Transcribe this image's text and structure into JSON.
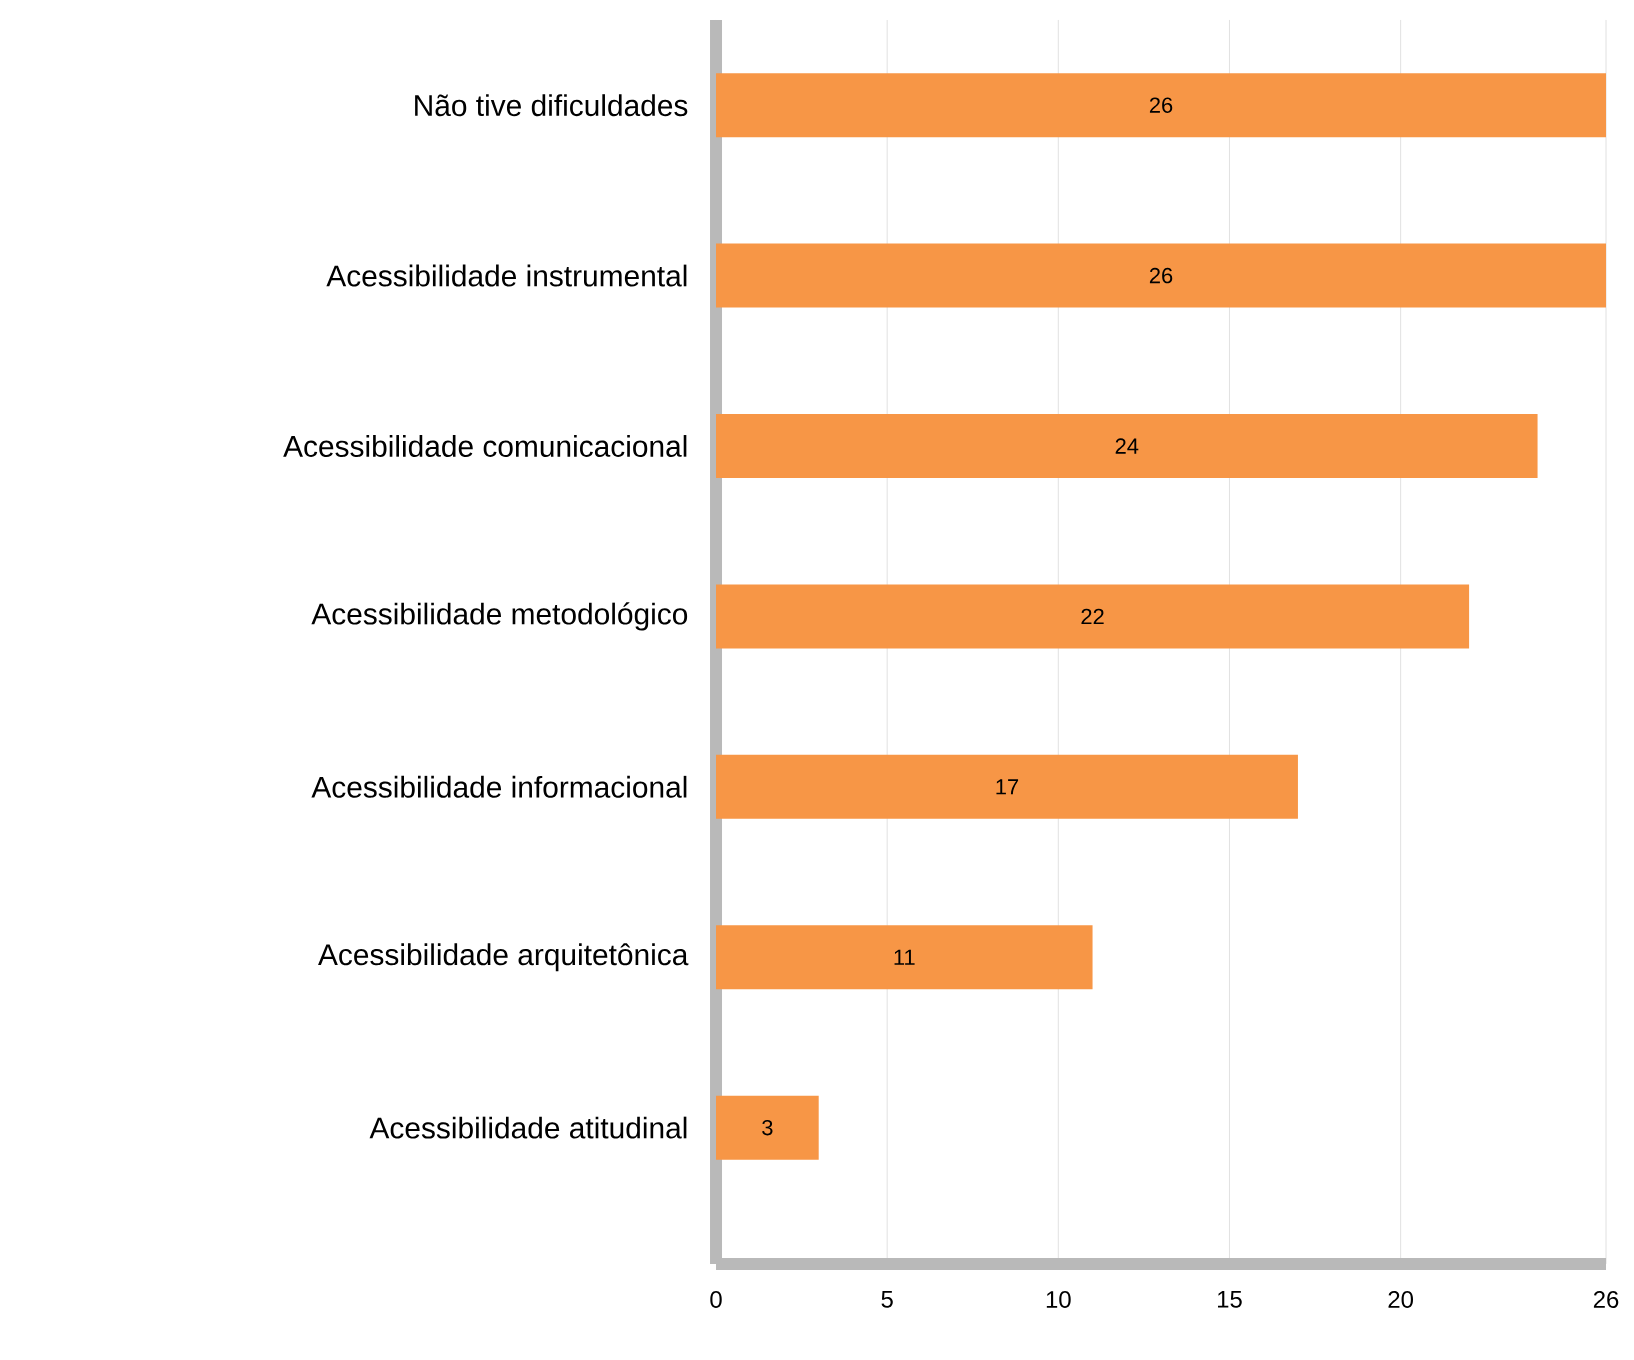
{
  "chart_data": {
    "type": "bar",
    "orientation": "horizontal",
    "categories": [
      "Não tive dificuldades",
      "Acessibilidade instrumental",
      "Acessibilidade comunicacional",
      "Acessibilidade metodológico",
      "Acessibilidade informacional",
      "Acessibilidade arquitetônica",
      "Acessibilidade atitudinal"
    ],
    "values": [
      26,
      26,
      24,
      22,
      17,
      11,
      3
    ],
    "color": "#f79646",
    "xlim": [
      0,
      26
    ],
    "xticks": [
      0,
      5,
      10,
      15,
      20,
      26
    ],
    "grid": "x",
    "data_labels": true
  }
}
